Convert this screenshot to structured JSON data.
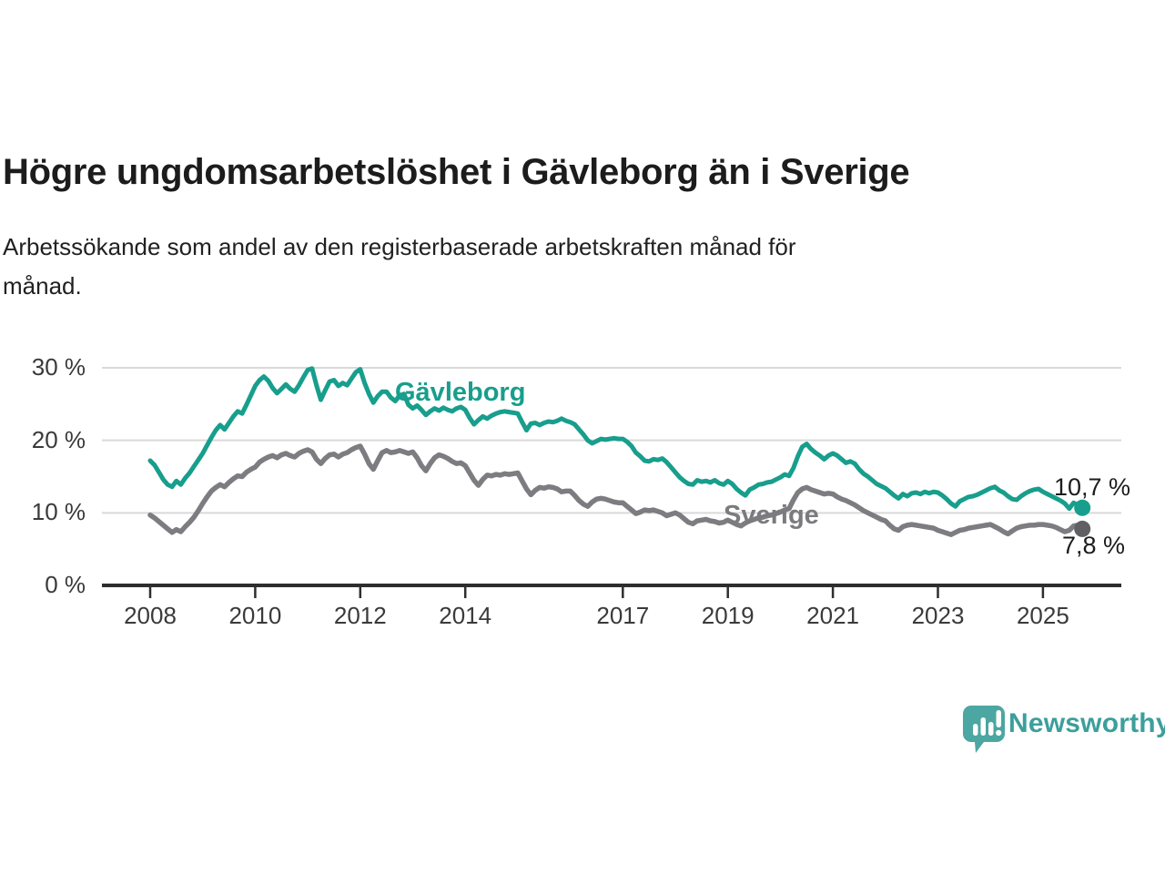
{
  "title": "Högre ungdomsarbetslöshet i Gävleborg än i Sverige",
  "subtitle_lines": [
    "Arbetssökande som andel av den registerbaserade arbetskraften månad för",
    "månad."
  ],
  "y_axis": {
    "tick_labels": [
      "30 %",
      "20 %",
      "10 %",
      "0 %"
    ],
    "tick_values": [
      30,
      20,
      10,
      0
    ]
  },
  "x_axis": {
    "tick_labels": [
      "2008",
      "2010",
      "2012",
      "2014",
      "2017",
      "2019",
      "2021",
      "2023",
      "2025"
    ],
    "tick_years": [
      2008,
      2010,
      2012,
      2014,
      2017,
      2019,
      2021,
      2023,
      2025
    ]
  },
  "series_labels": {
    "gavleborg": "Gävleborg",
    "sverige": "Sverige"
  },
  "end_labels": {
    "gavleborg": "10,7 %",
    "sverige": "7,8 %"
  },
  "branding": {
    "logo_text": "Newsworthy"
  },
  "colors": {
    "gavleborg": "#189e8c",
    "sverige": "#7c7c81",
    "sverige_dot": "#5f5f64",
    "grid": "#d9d9d9",
    "axis": "#2e2e2e",
    "text": "#1c1c1c",
    "logo_teal": "#4ca6a1"
  },
  "chart_data": {
    "type": "line",
    "title": "Högre ungdomsarbetslöshet i Gävleborg än i Sverige",
    "subtitle": "Arbetssökande som andel av den registerbaserade arbetskraften månad för månad.",
    "unit": "%",
    "ylim": [
      0,
      31
    ],
    "grid": true,
    "x_start_year": 2008,
    "points_per_year": 12,
    "x_end": "2025-10",
    "end_values": {
      "Gävleborg": "10,7 %",
      "Sverige": "7,8 %"
    },
    "series": [
      {
        "id": "gavleborg",
        "name": "Gävleborg",
        "color": "#189e8c",
        "dot_color": "#189e8c",
        "values": [
          17.2,
          16.6,
          15.6,
          14.6,
          13.9,
          13.6,
          14.4,
          13.9,
          14.8,
          15.5,
          16.4,
          17.3,
          18.2,
          19.3,
          20.4,
          21.4,
          22.1,
          21.5,
          22.4,
          23.3,
          24.0,
          23.7,
          24.9,
          26.2,
          27.5,
          28.3,
          28.8,
          28.2,
          27.2,
          26.5,
          27.1,
          27.7,
          27.1,
          26.7,
          27.6,
          28.7,
          29.7,
          29.9,
          27.6,
          25.6,
          26.9,
          28.1,
          28.3,
          27.5,
          27.9,
          27.6,
          28.5,
          29.4,
          29.8,
          27.9,
          26.4,
          25.2,
          26.1,
          26.7,
          26.7,
          25.9,
          25.4,
          26.2,
          26.4,
          24.9,
          24.4,
          24.8,
          24.2,
          23.5,
          24.0,
          24.4,
          24.1,
          24.5,
          24.2,
          24.0,
          24.4,
          24.6,
          24.2,
          23.1,
          22.2,
          22.8,
          23.3,
          23.0,
          23.4,
          23.7,
          23.9,
          24.0,
          23.9,
          23.8,
          23.7,
          22.5,
          21.4,
          22.3,
          22.4,
          22.1,
          22.4,
          22.6,
          22.5,
          22.7,
          23.0,
          22.7,
          22.5,
          22.2,
          21.5,
          20.8,
          20.0,
          19.6,
          19.9,
          20.2,
          20.1,
          20.2,
          20.3,
          20.2,
          20.2,
          19.8,
          19.2,
          18.3,
          17.8,
          17.2,
          17.1,
          17.4,
          17.3,
          17.5,
          17.0,
          16.3,
          15.6,
          14.9,
          14.4,
          14.0,
          13.9,
          14.5,
          14.3,
          14.4,
          14.2,
          14.5,
          14.1,
          13.9,
          14.4,
          14.0,
          13.3,
          12.8,
          12.4,
          13.2,
          13.5,
          13.9,
          14.0,
          14.2,
          14.3,
          14.6,
          14.9,
          15.3,
          15.1,
          16.2,
          17.8,
          19.1,
          19.5,
          18.8,
          18.3,
          17.9,
          17.4,
          17.9,
          18.2,
          17.9,
          17.4,
          16.9,
          17.1,
          16.8,
          16.0,
          15.4,
          15.0,
          14.5,
          14.0,
          13.7,
          13.4,
          12.9,
          12.4,
          12.0,
          12.6,
          12.3,
          12.7,
          12.8,
          12.6,
          12.9,
          12.7,
          12.9,
          12.8,
          12.4,
          11.9,
          11.3,
          10.9,
          11.6,
          11.9,
          12.2,
          12.3,
          12.5,
          12.8,
          13.1,
          13.4,
          13.6,
          13.1,
          12.8,
          12.3,
          11.9,
          11.8,
          12.3,
          12.7,
          13.0,
          13.2,
          13.3,
          12.9,
          12.6,
          12.3,
          12.0,
          11.7,
          11.3,
          10.6,
          11.4,
          11.0,
          10.7
        ]
      },
      {
        "id": "sverige",
        "name": "Sverige",
        "color": "#7c7c81",
        "dot_color": "#5f5f64",
        "values": [
          9.7,
          9.3,
          8.8,
          8.3,
          7.8,
          7.3,
          7.7,
          7.4,
          8.1,
          8.7,
          9.4,
          10.3,
          11.3,
          12.2,
          13.0,
          13.5,
          13.9,
          13.6,
          14.2,
          14.7,
          15.1,
          15.0,
          15.6,
          16.0,
          16.3,
          17.0,
          17.4,
          17.7,
          17.9,
          17.6,
          18.0,
          18.2,
          17.9,
          17.7,
          18.2,
          18.5,
          18.7,
          18.4,
          17.4,
          16.8,
          17.5,
          18.0,
          18.1,
          17.7,
          18.1,
          18.3,
          18.7,
          19.0,
          19.2,
          18.1,
          16.8,
          16.0,
          17.2,
          18.3,
          18.6,
          18.3,
          18.4,
          18.6,
          18.4,
          18.2,
          18.4,
          17.6,
          16.5,
          15.8,
          16.8,
          17.6,
          18.0,
          17.8,
          17.5,
          17.1,
          16.8,
          16.9,
          16.5,
          15.5,
          14.5,
          13.8,
          14.6,
          15.2,
          15.1,
          15.3,
          15.2,
          15.4,
          15.3,
          15.4,
          15.5,
          14.4,
          13.3,
          12.5,
          13.1,
          13.5,
          13.4,
          13.6,
          13.5,
          13.3,
          12.9,
          13.0,
          13.0,
          12.4,
          11.7,
          11.2,
          10.9,
          11.5,
          11.9,
          12.0,
          11.9,
          11.7,
          11.5,
          11.4,
          11.4,
          10.9,
          10.4,
          9.9,
          10.1,
          10.4,
          10.3,
          10.4,
          10.2,
          10.0,
          9.6,
          9.8,
          10.0,
          9.7,
          9.2,
          8.7,
          8.5,
          8.9,
          9.0,
          9.1,
          8.9,
          8.8,
          8.6,
          8.7,
          9.0,
          8.7,
          8.4,
          8.2,
          8.6,
          8.9,
          9.1,
          9.3,
          9.4,
          9.6,
          9.7,
          9.9,
          10.1,
          10.4,
          10.6,
          11.8,
          12.8,
          13.3,
          13.5,
          13.2,
          13.0,
          12.8,
          12.6,
          12.7,
          12.6,
          12.2,
          11.9,
          11.7,
          11.4,
          11.1,
          10.7,
          10.3,
          10.0,
          9.7,
          9.4,
          9.1,
          8.9,
          8.3,
          7.8,
          7.6,
          8.1,
          8.3,
          8.4,
          8.3,
          8.2,
          8.1,
          8.0,
          7.9,
          7.6,
          7.4,
          7.2,
          7.0,
          7.3,
          7.6,
          7.7,
          7.9,
          8.0,
          8.1,
          8.2,
          8.3,
          8.4,
          8.1,
          7.8,
          7.4,
          7.1,
          7.5,
          7.9,
          8.1,
          8.2,
          8.3,
          8.3,
          8.4,
          8.4,
          8.3,
          8.2,
          8.0,
          7.7,
          7.4,
          7.6,
          8.2,
          8.3,
          7.8
        ]
      }
    ]
  }
}
